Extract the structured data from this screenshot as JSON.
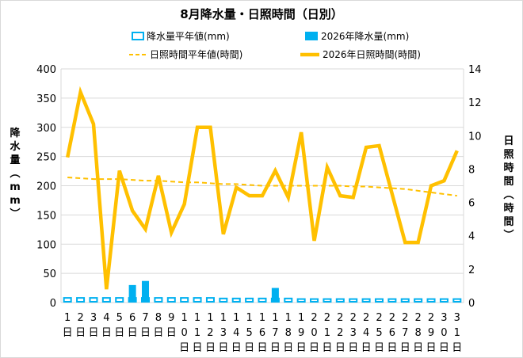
{
  "chart_data": {
    "type": "bar+line",
    "title": "8月降水量・日照時間（日別）",
    "legend": [
      {
        "name": "降水量平年値(mm)",
        "kind": "bar-outline",
        "color": "#00b0f0"
      },
      {
        "name": "2026年降水量(mm)",
        "kind": "bar",
        "color": "#00b0f0"
      },
      {
        "name": "日照時間平年値(時間)",
        "kind": "dashed-line",
        "color": "#ffc000"
      },
      {
        "name": "2026年日照時間(時間)",
        "kind": "line",
        "color": "#ffc000"
      }
    ],
    "categories": [
      "1",
      "2",
      "3",
      "4",
      "5",
      "6",
      "7",
      "8",
      "9",
      "10",
      "11",
      "12",
      "13",
      "14",
      "15",
      "16",
      "17",
      "18",
      "19",
      "20",
      "21",
      "22",
      "23",
      "24",
      "25",
      "26",
      "27",
      "28",
      "29",
      "30",
      "31"
    ],
    "x_suffix": "日",
    "y_left": {
      "label": "降水量（mm）",
      "min": 0,
      "max": 400,
      "ticks": [
        0,
        50,
        100,
        150,
        200,
        250,
        300,
        350,
        400
      ]
    },
    "y_right": {
      "label": "日照時間（時間）",
      "min": 0,
      "max": 14,
      "ticks": [
        0,
        2,
        4,
        6,
        8,
        10,
        12,
        14
      ]
    },
    "series": [
      {
        "name": "降水量平年値(mm)",
        "axis": "left",
        "values": [
          8,
          8,
          8,
          8,
          8,
          8,
          8,
          8,
          8,
          8,
          8,
          8,
          7,
          7,
          7,
          7,
          7,
          7,
          6,
          6,
          6,
          6,
          6,
          6,
          6,
          6,
          6,
          6,
          6,
          6,
          6
        ]
      },
      {
        "name": "2026年降水量(mm)",
        "axis": "left",
        "values": [
          0,
          0,
          0,
          0,
          0,
          30,
          37,
          0,
          0,
          0,
          0,
          0,
          0,
          0,
          0,
          0,
          25,
          0,
          0,
          0,
          0,
          0,
          0,
          0,
          0,
          0,
          0,
          0,
          0,
          0,
          0
        ]
      },
      {
        "name": "日照時間平年値(時間)",
        "axis": "right",
        "values": [
          7.5,
          7.45,
          7.4,
          7.4,
          7.4,
          7.35,
          7.3,
          7.3,
          7.25,
          7.2,
          7.2,
          7.15,
          7.1,
          7.1,
          7.05,
          7.0,
          7.0,
          7.0,
          7.0,
          7.0,
          7.0,
          7.0,
          6.95,
          6.95,
          6.9,
          6.85,
          6.8,
          6.7,
          6.6,
          6.5,
          6.4
        ]
      },
      {
        "name": "2026年日照時間(時間)",
        "axis": "right",
        "values": [
          8.7,
          12.6,
          10.7,
          0.8,
          7.9,
          5.5,
          4.4,
          7.6,
          4.2,
          5.9,
          10.5,
          10.5,
          4.1,
          6.9,
          6.4,
          6.4,
          7.9,
          6.3,
          10.2,
          3.7,
          8.1,
          6.4,
          6.3,
          9.3,
          9.4,
          6.5,
          3.6,
          3.6,
          7.0,
          7.3,
          9.1
        ]
      }
    ],
    "grid": "horizontal",
    "legend_position": "top"
  }
}
